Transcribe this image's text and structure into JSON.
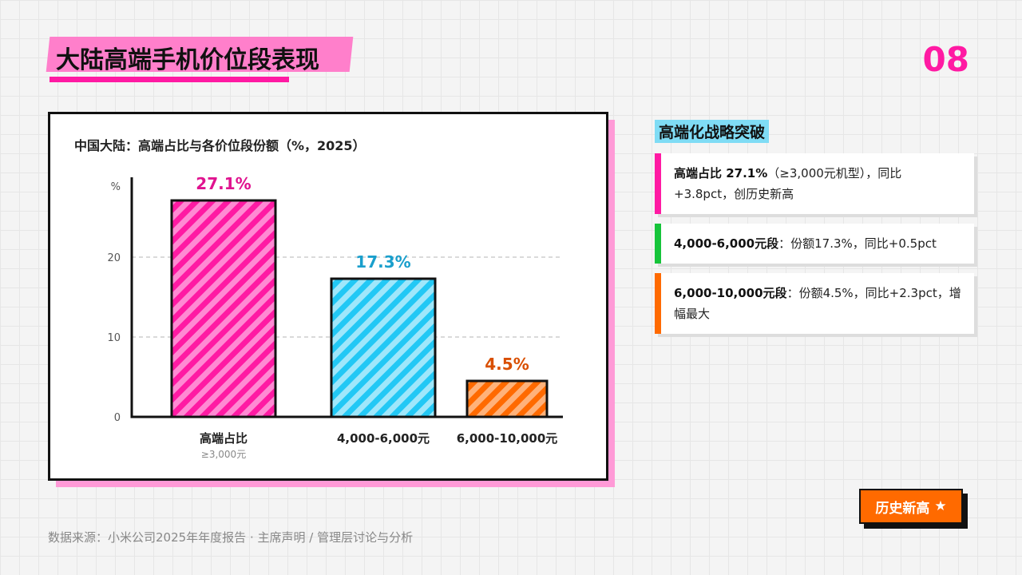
{
  "page": {
    "title": "大陆高端手机价位段表现",
    "number": "08",
    "source": "数据来源：小米公司2025年年度报告 · 主席声明 / 管理层讨论与分析"
  },
  "chart_data": {
    "type": "bar",
    "title": "中国大陆：高端占比与各价位段份额（%，2025）",
    "ylabel": "%",
    "ylim": [
      0,
      30
    ],
    "yticks": [
      "0",
      "10",
      "20"
    ],
    "ytick_values": [
      0,
      10,
      20
    ],
    "grid": "dashed horizontal at 10 and 20",
    "categories": [
      "高端占比",
      "4,000-6,000元",
      "6,000-10,000元"
    ],
    "category_sublabels": [
      "≥3,000元",
      "",
      ""
    ],
    "values": [
      27.1,
      17.3,
      4.5
    ],
    "value_labels": [
      "27.1%",
      "17.3%",
      "4.5%"
    ],
    "colors": [
      "#ff1aa3",
      "#22c8f5",
      "#ff6a00"
    ],
    "label_colors": [
      "#e0138f",
      "#1a9fcc",
      "#d94f00"
    ]
  },
  "panel": {
    "heading": "高端化战略突破",
    "cards": [
      {
        "bold": "高端占比 27.1%",
        "text": "（≥3,000元机型），同比+3.8pct，创历史新高",
        "color": "#ff1aa3"
      },
      {
        "bold": "4,000-6,000元段",
        "text": "：份额17.3%，同比+0.5pct",
        "color": "#16c43a"
      },
      {
        "bold": "6,000-10,000元段",
        "text": "：份额4.5%，同比+2.3pct，增幅最大",
        "color": "#ff6a00"
      }
    ]
  },
  "badge": {
    "label": "历史新高",
    "icon": "star-icon",
    "glyph": "★"
  }
}
